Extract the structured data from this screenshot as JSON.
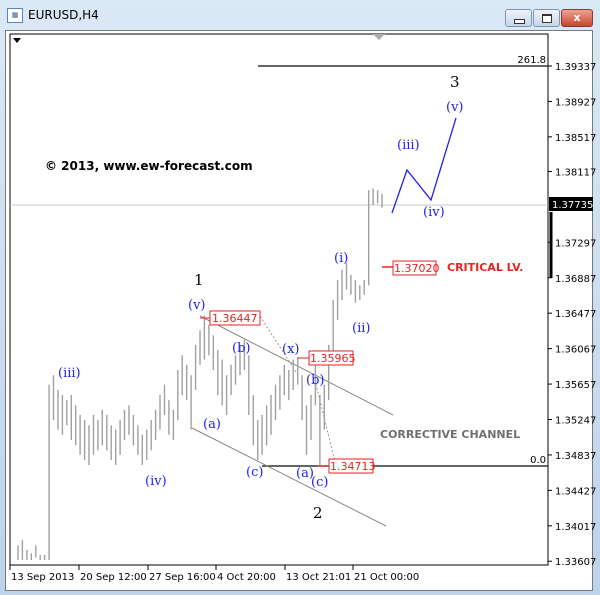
{
  "window": {
    "title": "EURUSD,H4",
    "close_label": "x"
  },
  "chart_data": {
    "type": "bar",
    "symbol": "EURUSD",
    "timeframe": "H4",
    "ylim": [
      1.335,
      1.397
    ],
    "y_ticks": [
      "1.39337",
      "1.38927",
      "1.38517",
      "1.38117",
      "1.37297",
      "1.36887",
      "1.36477",
      "1.36067",
      "1.35657",
      "1.35247",
      "1.34837",
      "1.34427",
      "1.34017",
      "1.33607"
    ],
    "current_price": "1.37735",
    "x_ticks": [
      "13 Sep 2013",
      "20 Sep 12:00",
      "27 Sep 16:00",
      "4 Oct 20:00",
      "13 Oct 21:01",
      "21 Oct 00:00"
    ],
    "bars_high_low": [
      [
        1.3379,
        1.3362
      ],
      [
        1.3385,
        1.3362
      ],
      [
        1.3374,
        1.3362
      ],
      [
        1.337,
        1.3362
      ],
      [
        1.3379,
        1.3365
      ],
      [
        1.3368,
        1.3362
      ],
      [
        1.3368,
        1.3362
      ],
      [
        1.3565,
        1.3362
      ],
      [
        1.3576,
        1.3524
      ],
      [
        1.3559,
        1.3513
      ],
      [
        1.3553,
        1.3507
      ],
      [
        1.3547,
        1.3518
      ],
      [
        1.3553,
        1.3501
      ],
      [
        1.3541,
        1.3495
      ],
      [
        1.353,
        1.3484
      ],
      [
        1.3524,
        1.3478
      ],
      [
        1.3518,
        1.3472
      ],
      [
        1.353,
        1.3484
      ],
      [
        1.3524,
        1.3489
      ],
      [
        1.3536,
        1.3495
      ],
      [
        1.353,
        1.3489
      ],
      [
        1.3518,
        1.3478
      ],
      [
        1.3513,
        1.3472
      ],
      [
        1.3524,
        1.3484
      ],
      [
        1.3536,
        1.3501
      ],
      [
        1.3541,
        1.3507
      ],
      [
        1.353,
        1.3495
      ],
      [
        1.3518,
        1.3484
      ],
      [
        1.3507,
        1.3472
      ],
      [
        1.3513,
        1.3478
      ],
      [
        1.3524,
        1.3489
      ],
      [
        1.3536,
        1.3501
      ],
      [
        1.3553,
        1.3513
      ],
      [
        1.3565,
        1.353
      ],
      [
        1.3547,
        1.3507
      ],
      [
        1.3536,
        1.3501
      ],
      [
        1.3582,
        1.3524
      ],
      [
        1.3599,
        1.3553
      ],
      [
        1.3588,
        1.3547
      ],
      [
        1.3576,
        1.3513
      ],
      [
        1.3611,
        1.3559
      ],
      [
        1.3628,
        1.3588
      ],
      [
        1.3645,
        1.3594
      ],
      [
        1.3634,
        1.3599
      ],
      [
        1.3622,
        1.3582
      ],
      [
        1.3605,
        1.3553
      ],
      [
        1.3594,
        1.3541
      ],
      [
        1.3576,
        1.353
      ],
      [
        1.3588,
        1.3553
      ],
      [
        1.3599,
        1.3565
      ],
      [
        1.3611,
        1.3576
      ],
      [
        1.3617,
        1.3582
      ],
      [
        1.3599,
        1.353
      ],
      [
        1.3553,
        1.3495
      ],
      [
        1.3524,
        1.3478
      ],
      [
        1.353,
        1.3484
      ],
      [
        1.3541,
        1.3495
      ],
      [
        1.3553,
        1.3507
      ],
      [
        1.3565,
        1.3524
      ],
      [
        1.3576,
        1.3536
      ],
      [
        1.3588,
        1.3553
      ],
      [
        1.3582,
        1.3547
      ],
      [
        1.3594,
        1.3559
      ],
      [
        1.3597,
        1.3565
      ],
      [
        1.3576,
        1.3524
      ],
      [
        1.3541,
        1.3484
      ],
      [
        1.3553,
        1.3501
      ],
      [
        1.3588,
        1.3541
      ],
      [
        1.3553,
        1.3471
      ],
      [
        1.3565,
        1.3513
      ],
      [
        1.3611,
        1.3547
      ],
      [
        1.3663,
        1.3599
      ],
      [
        1.3686,
        1.364
      ],
      [
        1.3698,
        1.3663
      ],
      [
        1.3706,
        1.3675
      ],
      [
        1.3692,
        1.3669
      ],
      [
        1.3686,
        1.366
      ],
      [
        1.368,
        1.3663
      ],
      [
        1.3686,
        1.3669
      ],
      [
        1.379,
        1.368
      ],
      [
        1.3792,
        1.3773
      ],
      [
        1.379,
        1.3775
      ],
      [
        1.3786,
        1.377
      ]
    ],
    "fib_labels": {
      "top": "261.8",
      "bottom": "0.0"
    },
    "price_labels": {
      "wave_v_high": "1.36447",
      "wave_x_high": "1.35965",
      "wave_2_low": "1.34713",
      "critical": "1.37020"
    },
    "annotations": {
      "copyright": "© 2013, www.ew-forecast.com",
      "critical": "CRITICAL LV.",
      "channel": "CORRECTIVE CHANNEL"
    },
    "wave_labels": {
      "w1": "1",
      "w2": "2",
      "w3": "3",
      "iii": "(iii)",
      "iv": "(iv)",
      "v": "(v)",
      "a1": "(a)",
      "b1": "(b)",
      "c1": "(c)",
      "x": "(x)",
      "a2": "(a)",
      "b2": "(b)",
      "c2": "(c)",
      "i": "(i)",
      "ii": "(ii)",
      "iii_proj": "(iii)",
      "iv_proj": "(iv)",
      "v_proj": "(v)"
    },
    "colors": {
      "bars": "#a0a0a0",
      "labels": "#2222ee",
      "critical": "#ee2222",
      "projection": "#2222ee"
    }
  }
}
